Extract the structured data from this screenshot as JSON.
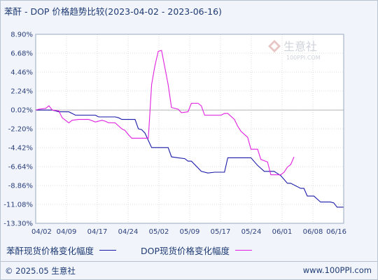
{
  "title": "苯酐 - DOP 价格趋势比较(2023-04-02 - 2023-06-16)",
  "watermark": {
    "logo_text": "生意社",
    "url_text": "100PPI.COM"
  },
  "legend": [
    {
      "label": "苯酐现货价格变化幅度",
      "color": "#1a1aa8"
    },
    {
      "label": "DOP现货价格变化幅度",
      "color": "#e020e0"
    }
  ],
  "footer": {
    "left": "© 2025.05 生意社",
    "right": "www.100PPI.com"
  },
  "chart_data": {
    "type": "line",
    "title": "苯酐 - DOP 价格趋势比较(2023-04-02 - 2023-06-16)",
    "xlabel": "",
    "ylabel": "",
    "x_tick_labels": [
      "04/02",
      "04/09",
      "04/17",
      "04/24",
      "05/02",
      "05/09",
      "05/17",
      "05/24",
      "06/01",
      "06/08",
      "06/16"
    ],
    "y_tick_labels": [
      "8.90%",
      "6.68%",
      "4.46%",
      "2.24%",
      "0.02%",
      "-2.20%",
      "-4.42%",
      "-6.64%",
      "-8.86%",
      "-11.08%",
      "-13.30%"
    ],
    "ylim": [
      -13.3,
      8.9
    ],
    "x_count": 76,
    "grid": true,
    "legend_position": "bottom",
    "series": [
      {
        "name": "苯酐现货价格变化幅度",
        "color": "#1a1aa8",
        "points": [
          [
            0,
            0
          ],
          [
            5,
            0
          ],
          [
            7,
            -0.2
          ],
          [
            10,
            -0.2
          ],
          [
            12,
            -0.6
          ],
          [
            18,
            -0.6
          ],
          [
            19,
            -0.8
          ],
          [
            24,
            -0.8
          ],
          [
            25,
            -0.9
          ],
          [
            26,
            -1.1
          ],
          [
            30,
            -1.1
          ],
          [
            31,
            -2.2
          ],
          [
            32,
            -2.3
          ],
          [
            33,
            -2.7
          ],
          [
            35,
            -4.4
          ],
          [
            40,
            -4.4
          ],
          [
            41,
            -5.5
          ],
          [
            43,
            -5.6
          ],
          [
            45,
            -5.7
          ],
          [
            46,
            -6.0
          ],
          [
            47,
            -6.0
          ],
          [
            50,
            -7.2
          ],
          [
            52,
            -7.4
          ],
          [
            54,
            -7.3
          ],
          [
            57,
            -7.3
          ],
          [
            58,
            -5.6
          ],
          [
            65,
            -5.6
          ],
          [
            67,
            -6.5
          ],
          [
            69,
            -7.2
          ],
          [
            72,
            -7.2
          ],
          [
            74,
            -7.7
          ],
          [
            76,
            -8.6
          ],
          [
            77,
            -8.6
          ],
          [
            80,
            -9.2
          ],
          [
            81,
            -9.2
          ],
          [
            82,
            -10.1
          ],
          [
            84,
            -10.1
          ],
          [
            86,
            -10.8
          ],
          [
            89,
            -10.8
          ],
          [
            90,
            -10.9
          ],
          [
            91,
            -11.4
          ],
          [
            93,
            -11.4
          ]
        ]
      },
      {
        "name": "DOP现货价格变化幅度",
        "color": "#e020e0",
        "points": [
          [
            0,
            0
          ],
          [
            1,
            0.1
          ],
          [
            3,
            0.2
          ],
          [
            4,
            0.5
          ],
          [
            5,
            0
          ],
          [
            7,
            -0.1
          ],
          [
            8,
            -0.9
          ],
          [
            9,
            -1.2
          ],
          [
            10,
            -1.5
          ],
          [
            11,
            -1.2
          ],
          [
            13,
            -1.1
          ],
          [
            16,
            -1.1
          ],
          [
            18,
            -1.4
          ],
          [
            20,
            -1.2
          ],
          [
            21,
            -1.3
          ],
          [
            22,
            -1.5
          ],
          [
            24,
            -1.5
          ],
          [
            26,
            -2.2
          ],
          [
            27,
            -2.4
          ],
          [
            28,
            -2.9
          ],
          [
            29,
            -3.3
          ],
          [
            34,
            -3.3
          ],
          [
            35,
            3.0
          ],
          [
            36,
            5.2
          ],
          [
            37,
            6.9
          ],
          [
            38,
            7.0
          ],
          [
            40,
            3.0
          ],
          [
            41,
            0.3
          ],
          [
            43,
            0.1
          ],
          [
            44,
            -0.3
          ],
          [
            46,
            -0.2
          ],
          [
            47,
            0.8
          ],
          [
            49,
            0.8
          ],
          [
            50,
            0.5
          ],
          [
            51,
            -0.6
          ],
          [
            56,
            -0.6
          ],
          [
            57,
            -0.4
          ],
          [
            58,
            -0.4
          ],
          [
            60,
            -1.1
          ],
          [
            61,
            -1.9
          ],
          [
            62,
            -2.5
          ],
          [
            64,
            -3.2
          ],
          [
            65,
            -4.6
          ],
          [
            67,
            -4.6
          ],
          [
            68,
            -5.8
          ],
          [
            70,
            -6.1
          ],
          [
            71,
            -7.6
          ],
          [
            74,
            -7.6
          ],
          [
            75,
            -7.3
          ],
          [
            76,
            -6.7
          ],
          [
            77,
            -6.4
          ],
          [
            78,
            -5.5
          ]
        ]
      }
    ]
  }
}
